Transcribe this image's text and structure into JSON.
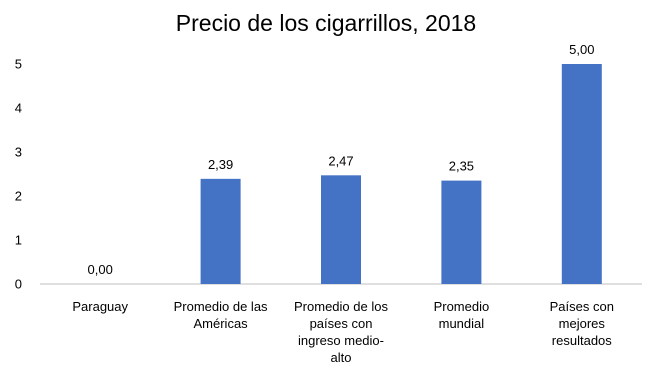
{
  "chart_data": {
    "type": "bar",
    "title": "Precio de los cigarrillos, 2018",
    "xlabel": "",
    "ylabel": "",
    "categories": [
      [
        "Paraguay"
      ],
      [
        "Promedio de las",
        "Américas"
      ],
      [
        "Promedio de los",
        "países con",
        "ingreso medio-",
        "alto"
      ],
      [
        "Promedio",
        "mundial"
      ],
      [
        "Países con",
        "mejores",
        "resultados"
      ]
    ],
    "values": [
      0.0,
      2.39,
      2.47,
      2.35,
      5.0
    ],
    "data_labels": [
      "0,00",
      "2,39",
      "2,47",
      "2,35",
      "5,00"
    ],
    "yticks": [
      0,
      1,
      2,
      3,
      4,
      5
    ],
    "ylim": [
      0,
      5
    ],
    "grid": false,
    "legend": "none",
    "bar_color": "#4472c4",
    "axis_color": "#bfbfbf"
  }
}
